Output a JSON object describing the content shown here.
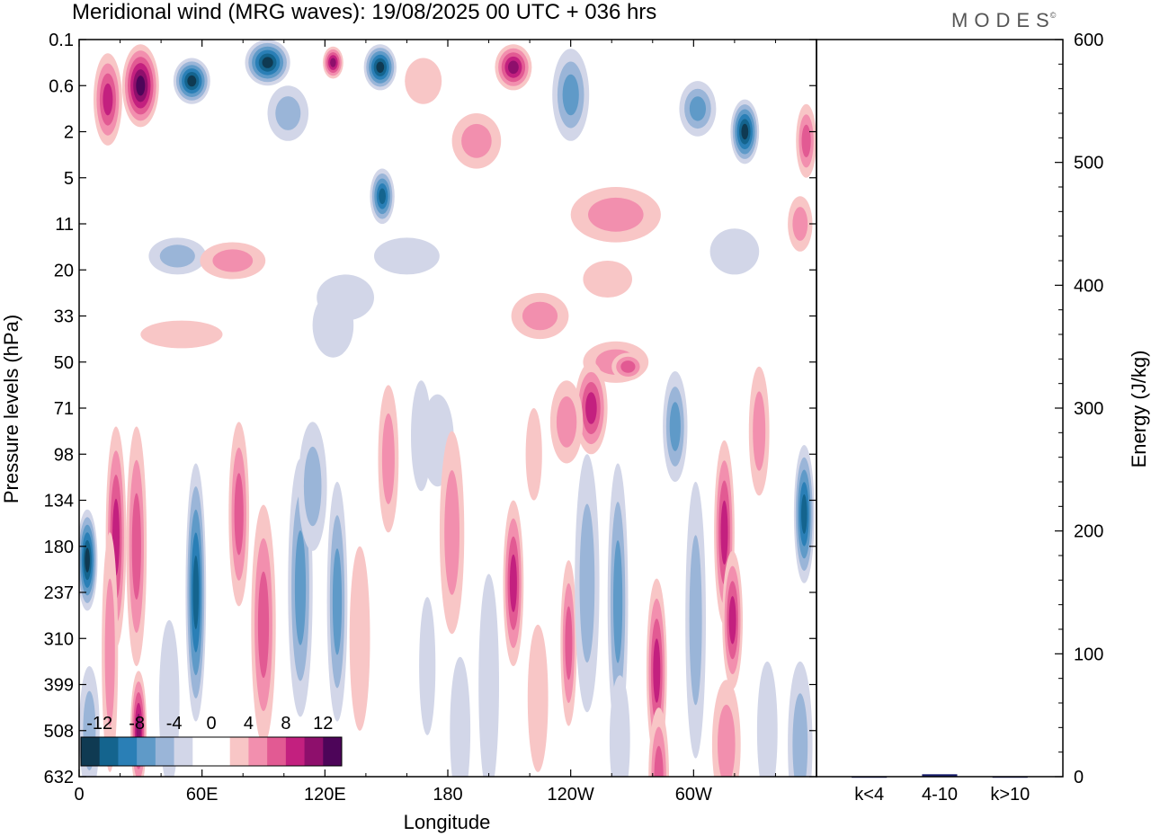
{
  "title": "Meridional wind (MRG waves):  19/08/2025  00 UTC  + 036 hrs",
  "brand": {
    "name": "MODES",
    "mark": "©"
  },
  "chart_data": [
    {
      "type": "heatmap",
      "title": "Meridional wind (MRG waves)",
      "xlabel": "Longitude",
      "ylabel": "Pressure levels (hPa)",
      "x_ticks": [
        "0",
        "60E",
        "120E",
        "180",
        "120W",
        "60W"
      ],
      "x_tick_degrees": [
        0,
        60,
        120,
        180,
        240,
        300
      ],
      "xlim_degrees": [
        0,
        360
      ],
      "y_ticks": [
        "0.1",
        "0.6",
        "2",
        "5",
        "11",
        "20",
        "33",
        "50",
        "71",
        "98",
        "134",
        "180",
        "237",
        "310",
        "399",
        "508",
        "632"
      ],
      "y_orientation": "top-to-bottom",
      "colorbar": {
        "labels": [
          "-12",
          "-8",
          "-4",
          "0",
          "4",
          "8",
          "12"
        ],
        "label_positions": [
          1,
          3,
          5,
          7,
          9,
          11,
          13
        ],
        "colors": [
          "#0f3a52",
          "#14648e",
          "#2a7fb6",
          "#5f9ac8",
          "#9ab5d8",
          "#d2d6e8",
          "#ffffff",
          "#ffffff",
          "#f8c6c6",
          "#f28fae",
          "#e25a93",
          "#c3207f",
          "#8e0f6c",
          "#4d0559"
        ],
        "placement": "bottom-left"
      },
      "features": [
        {
          "lon": 30,
          "lev": 1.0,
          "v": 14,
          "w": 9,
          "h": 0.9
        },
        {
          "lon": 14,
          "lev": 1.3,
          "v": 8,
          "w": 7,
          "h": 1.0
        },
        {
          "lon": 55,
          "lev": 0.9,
          "v": -12,
          "w": 9,
          "h": 0.5
        },
        {
          "lon": 92,
          "lev": 0.5,
          "v": -13,
          "w": 11,
          "h": 0.5
        },
        {
          "lon": 124,
          "lev": 0.5,
          "v": 10,
          "w": 5,
          "h": 0.35
        },
        {
          "lon": 147,
          "lev": 0.6,
          "v": -12,
          "w": 8,
          "h": 0.5
        },
        {
          "lon": 148,
          "lev": 3.4,
          "v": -10,
          "w": 6,
          "h": 0.6
        },
        {
          "lon": 212,
          "lev": 0.6,
          "v": 11,
          "w": 9,
          "h": 0.5
        },
        {
          "lon": 240,
          "lev": 1.2,
          "v": -6,
          "w": 9,
          "h": 1.0
        },
        {
          "lon": 325,
          "lev": 2.0,
          "v": -12,
          "w": 7,
          "h": 0.7
        },
        {
          "lon": 302,
          "lev": 1.5,
          "v": -6,
          "w": 9,
          "h": 0.6
        },
        {
          "lon": 355,
          "lev": 2.2,
          "v": 6,
          "w": 5,
          "h": 0.8
        },
        {
          "lon": 194,
          "lev": 2.2,
          "v": 5,
          "w": 12,
          "h": 0.6
        },
        {
          "lon": 102,
          "lev": 1.6,
          "v": -4,
          "w": 10,
          "h": 0.6
        },
        {
          "lon": 168,
          "lev": 0.9,
          "v": 3,
          "w": 9,
          "h": 0.5
        },
        {
          "lon": 262,
          "lev": 3.8,
          "v": 4,
          "w": 22,
          "h": 0.6
        },
        {
          "lon": 225,
          "lev": 6.0,
          "v": 5,
          "w": 14,
          "h": 0.5
        },
        {
          "lon": 48,
          "lev": 4.7,
          "v": -5,
          "w": 14,
          "h": 0.4
        },
        {
          "lon": 75,
          "lev": 4.8,
          "v": 4,
          "w": 16,
          "h": 0.4
        },
        {
          "lon": 160,
          "lev": 4.7,
          "v": -3,
          "w": 16,
          "h": 0.4
        },
        {
          "lon": 130,
          "lev": 5.6,
          "v": -3,
          "w": 14,
          "h": 0.5
        },
        {
          "lon": 258,
          "lev": 5.2,
          "v": 3,
          "w": 12,
          "h": 0.4
        },
        {
          "lon": 320,
          "lev": 4.6,
          "v": -3,
          "w": 12,
          "h": 0.5
        },
        {
          "lon": 352,
          "lev": 4.0,
          "v": 4,
          "w": 6,
          "h": 0.6
        },
        {
          "lon": 50,
          "lev": 6.4,
          "v": 3,
          "w": 20,
          "h": 0.3
        },
        {
          "lon": 124,
          "lev": 6.2,
          "v": -3,
          "w": 10,
          "h": 0.7
        },
        {
          "lon": 262,
          "lev": 7.0,
          "v": 5,
          "w": 16,
          "h": 0.45
        },
        {
          "lon": 268,
          "lev": 7.1,
          "v": 7,
          "w": 8,
          "h": 0.3
        },
        {
          "lon": 18,
          "lev": 10.8,
          "v": 8,
          "w": 5,
          "h": 2.4
        },
        {
          "lon": 28,
          "lev": 11.0,
          "v": 7,
          "w": 5,
          "h": 2.6
        },
        {
          "lon": 29,
          "lev": 15.0,
          "v": 10,
          "w": 4,
          "h": 1.3
        },
        {
          "lon": 15,
          "lev": 13.3,
          "v": 5,
          "w": 4,
          "h": 2.6
        },
        {
          "lon": 4,
          "lev": 11.3,
          "v": -12,
          "w": 5,
          "h": 1.1
        },
        {
          "lon": 5,
          "lev": 15.0,
          "v": -5,
          "w": 5,
          "h": 1.4
        },
        {
          "lon": 57,
          "lev": 12.0,
          "v": -10,
          "w": 5,
          "h": 2.8
        },
        {
          "lon": 78,
          "lev": 10.3,
          "v": 6,
          "w": 5,
          "h": 2.0
        },
        {
          "lon": 90,
          "lev": 12.7,
          "v": 6,
          "w": 6,
          "h": 2.6
        },
        {
          "lon": 108,
          "lev": 11.9,
          "v": -6,
          "w": 6,
          "h": 2.8
        },
        {
          "lon": 126,
          "lev": 12.2,
          "v": -6,
          "w": 5,
          "h": 2.6
        },
        {
          "lon": 114,
          "lev": 9.7,
          "v": -4,
          "w": 7,
          "h": 1.4
        },
        {
          "lon": 151,
          "lev": 9.1,
          "v": 4,
          "w": 5,
          "h": 1.6
        },
        {
          "lon": 167,
          "lev": 8.6,
          "v": -3,
          "w": 5,
          "h": 1.2
        },
        {
          "lon": 175,
          "lev": 8.7,
          "v": -3,
          "w": 8,
          "h": 1.0
        },
        {
          "lon": 182,
          "lev": 10.7,
          "v": 5,
          "w": 6,
          "h": 2.2
        },
        {
          "lon": 212,
          "lev": 11.8,
          "v": 9,
          "w": 5,
          "h": 1.8
        },
        {
          "lon": 222,
          "lev": 9.0,
          "v": 3,
          "w": 4,
          "h": 1.0
        },
        {
          "lon": 200,
          "lev": 14.0,
          "v": -3,
          "w": 5,
          "h": 2.4
        },
        {
          "lon": 239,
          "lev": 13.1,
          "v": 7,
          "w": 4,
          "h": 1.8
        },
        {
          "lon": 250,
          "lev": 8.0,
          "v": 8,
          "w": 8,
          "h": 1.0
        },
        {
          "lon": 238,
          "lev": 8.3,
          "v": 4,
          "w": 8,
          "h": 0.9
        },
        {
          "lon": 263,
          "lev": 12.2,
          "v": -7,
          "w": 5,
          "h": 3.0
        },
        {
          "lon": 248,
          "lev": 11.8,
          "v": -4,
          "w": 6,
          "h": 2.8
        },
        {
          "lon": 291,
          "lev": 8.4,
          "v": -6,
          "w": 6,
          "h": 1.2
        },
        {
          "lon": 282,
          "lev": 13.7,
          "v": 9,
          "w": 5,
          "h": 2.0
        },
        {
          "lon": 283,
          "lev": 16.0,
          "v": 6,
          "w": 5,
          "h": 1.5
        },
        {
          "lon": 315,
          "lev": 10.7,
          "v": 8,
          "w": 5,
          "h": 2.0
        },
        {
          "lon": 319,
          "lev": 12.6,
          "v": 8,
          "w": 5,
          "h": 1.5
        },
        {
          "lon": 332,
          "lev": 8.5,
          "v": 5,
          "w": 5,
          "h": 1.4
        },
        {
          "lon": 301,
          "lev": 12.6,
          "v": -4,
          "w": 5,
          "h": 3.0
        },
        {
          "lon": 354,
          "lev": 10.3,
          "v": -10,
          "w": 5,
          "h": 1.5
        },
        {
          "lon": 352,
          "lev": 15.3,
          "v": -4,
          "w": 6,
          "h": 1.8
        },
        {
          "lon": 316,
          "lev": 15.3,
          "v": 4,
          "w": 7,
          "h": 1.4
        },
        {
          "lon": 336,
          "lev": 15.0,
          "v": -3,
          "w": 5,
          "h": 1.5
        },
        {
          "lon": 137,
          "lev": 13.0,
          "v": 3,
          "w": 5,
          "h": 2.0
        },
        {
          "lon": 186,
          "lev": 15.0,
          "v": -3,
          "w": 5,
          "h": 1.6
        },
        {
          "lon": 264,
          "lev": 15.2,
          "v": -3,
          "w": 5,
          "h": 1.4
        },
        {
          "lon": 224,
          "lev": 14.3,
          "v": 3,
          "w": 5,
          "h": 1.6
        },
        {
          "lon": 170,
          "lev": 13.6,
          "v": -3,
          "w": 4,
          "h": 1.5
        },
        {
          "lon": 44,
          "lev": 14.4,
          "v": -3,
          "w": 5,
          "h": 1.8
        }
      ]
    },
    {
      "type": "bar",
      "categories": [
        "k<4",
        "4-10",
        "k>10"
      ],
      "values": [
        0,
        2,
        0
      ],
      "bar_color": "#1a1f6e",
      "ylabel": "Energy (J/kg)",
      "ylim": [
        0,
        600
      ],
      "y_ticks": [
        "0",
        "100",
        "200",
        "300",
        "400",
        "500",
        "600"
      ]
    }
  ]
}
